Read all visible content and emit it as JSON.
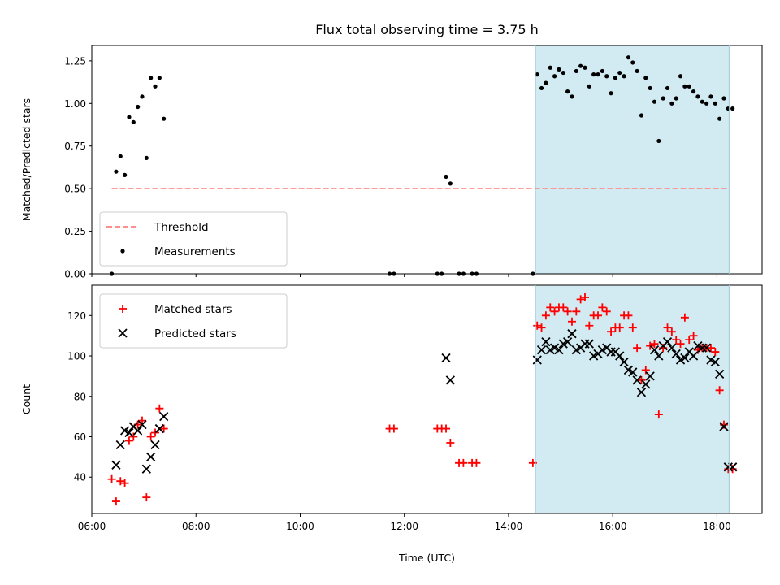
{
  "chart_data": [
    {
      "type": "scatter",
      "title": "Flux total observing time = 3.75 h",
      "xlabel": "",
      "ylabel": "Matched/Predicted stars",
      "xlim": [
        "06:00",
        "18:52"
      ],
      "ylim": [
        0,
        1.34
      ],
      "yticks": [
        0.0,
        0.25,
        0.5,
        0.75,
        1.0,
        1.25
      ],
      "ytick_labels": [
        "0.00",
        "0.25",
        "0.50",
        "0.75",
        "1.00",
        "1.25"
      ],
      "grid": false,
      "shaded_region": {
        "x_start": "14:31",
        "x_end": "18:14",
        "color": "#add8e6"
      },
      "legend": {
        "placement": "lower-left",
        "entries": [
          "Threshold",
          "Measurements"
        ]
      },
      "series": [
        {
          "name": "Threshold",
          "style": "dashed-line",
          "color": "#ff7f7f",
          "x": [
            "06:23",
            "18:14"
          ],
          "y": [
            0.5,
            0.5
          ]
        },
        {
          "name": "Measurements",
          "style": "dots",
          "color": "#000000",
          "x": [
            "06:23",
            "06:28",
            "06:33",
            "06:38",
            "06:43",
            "06:48",
            "06:53",
            "06:58",
            "07:03",
            "07:08",
            "07:13",
            "07:18",
            "07:23",
            "11:43",
            "11:48",
            "12:38",
            "12:43",
            "12:48",
            "12:53",
            "13:03",
            "13:08",
            "13:18",
            "13:23",
            "14:28",
            "14:33",
            "14:38",
            "14:43",
            "14:48",
            "14:53",
            "14:58",
            "15:03",
            "15:08",
            "15:13",
            "15:18",
            "15:23",
            "15:28",
            "15:33",
            "15:38",
            "15:43",
            "15:48",
            "15:53",
            "15:58",
            "16:03",
            "16:08",
            "16:13",
            "16:18",
            "16:23",
            "16:28",
            "16:33",
            "16:38",
            "16:43",
            "16:48",
            "16:53",
            "16:58",
            "17:03",
            "17:08",
            "17:13",
            "17:18",
            "17:23",
            "17:28",
            "17:33",
            "17:38",
            "17:43",
            "17:48",
            "17:53",
            "17:58",
            "18:03",
            "18:08",
            "18:13",
            "18:18"
          ],
          "y": [
            0.0,
            0.6,
            0.69,
            0.58,
            0.92,
            0.89,
            0.98,
            1.04,
            0.68,
            1.15,
            1.1,
            1.15,
            0.91,
            0.0,
            0.0,
            0.0,
            0.0,
            0.57,
            0.53,
            0.0,
            0.0,
            0.0,
            0.0,
            0.0,
            1.17,
            1.09,
            1.12,
            1.21,
            1.16,
            1.2,
            1.18,
            1.07,
            1.04,
            1.19,
            1.22,
            1.21,
            1.1,
            1.17,
            1.17,
            1.19,
            1.16,
            1.06,
            1.15,
            1.18,
            1.16,
            1.27,
            1.24,
            1.19,
            0.93,
            1.15,
            1.09,
            1.01,
            0.78,
            1.03,
            1.09,
            1.0,
            1.03,
            1.16,
            1.1,
            1.1,
            1.07,
            1.04,
            1.01,
            1.0,
            1.04,
            1.0,
            0.91,
            1.03,
            0.97,
            0.97
          ]
        }
      ]
    },
    {
      "type": "scatter",
      "title": "",
      "xlabel": "Time (UTC)",
      "ylabel": "Count",
      "xlim": [
        "06:00",
        "18:52"
      ],
      "ylim": [
        22,
        135
      ],
      "yticks": [
        40,
        60,
        80,
        100,
        120
      ],
      "ytick_labels": [
        "40",
        "60",
        "80",
        "100",
        "120"
      ],
      "xticks": [
        "06:00",
        "08:00",
        "10:00",
        "12:00",
        "14:00",
        "16:00",
        "18:00"
      ],
      "grid": false,
      "shaded_region": {
        "x_start": "14:31",
        "x_end": "18:14",
        "color": "#add8e6"
      },
      "legend": {
        "placement": "upper-left",
        "entries": [
          "Matched stars",
          "Predicted stars"
        ]
      },
      "series": [
        {
          "name": "Matched stars",
          "marker": "+",
          "color": "#ff0000",
          "x": [
            "06:23",
            "06:28",
            "06:33",
            "06:38",
            "06:43",
            "06:48",
            "06:53",
            "06:58",
            "07:03",
            "07:08",
            "07:13",
            "07:18",
            "07:23",
            "11:43",
            "11:48",
            "12:38",
            "12:43",
            "12:48",
            "12:53",
            "13:03",
            "13:08",
            "13:18",
            "13:23",
            "14:28",
            "14:33",
            "14:38",
            "14:43",
            "14:48",
            "14:53",
            "14:58",
            "15:03",
            "15:08",
            "15:13",
            "15:18",
            "15:23",
            "15:28",
            "15:33",
            "15:38",
            "15:43",
            "15:48",
            "15:53",
            "15:58",
            "16:03",
            "16:08",
            "16:13",
            "16:18",
            "16:23",
            "16:28",
            "16:33",
            "16:38",
            "16:43",
            "16:48",
            "16:53",
            "16:58",
            "17:03",
            "17:08",
            "17:13",
            "17:18",
            "17:23",
            "17:28",
            "17:33",
            "17:38",
            "17:43",
            "17:48",
            "17:53",
            "17:58",
            "18:03",
            "18:08",
            "18:13",
            "18:18"
          ],
          "y": [
            39,
            28,
            38,
            37,
            58,
            60,
            66,
            68,
            30,
            60,
            62,
            74,
            64,
            64,
            64,
            64,
            64,
            64,
            57,
            47,
            47,
            47,
            47,
            47,
            115,
            114,
            120,
            124,
            122,
            124,
            124,
            122,
            117,
            122,
            128,
            129,
            115,
            120,
            120,
            124,
            122,
            112,
            114,
            114,
            120,
            120,
            114,
            104,
            88,
            93,
            105,
            106,
            71,
            104,
            114,
            112,
            108,
            106,
            119,
            108,
            110,
            103,
            104,
            104,
            104,
            102,
            83,
            66,
            44,
            44
          ]
        },
        {
          "name": "Predicted stars",
          "marker": "x",
          "color": "#000000",
          "x": [
            "06:28",
            "06:33",
            "06:38",
            "06:43",
            "06:48",
            "06:53",
            "06:58",
            "07:03",
            "07:08",
            "07:13",
            "07:18",
            "07:23",
            "12:48",
            "12:53",
            "14:33",
            "14:38",
            "14:43",
            "14:48",
            "14:53",
            "14:58",
            "15:03",
            "15:08",
            "15:13",
            "15:18",
            "15:23",
            "15:28",
            "15:33",
            "15:38",
            "15:43",
            "15:48",
            "15:53",
            "15:58",
            "16:03",
            "16:08",
            "16:13",
            "16:18",
            "16:23",
            "16:28",
            "16:33",
            "16:38",
            "16:43",
            "16:48",
            "16:53",
            "16:58",
            "17:03",
            "17:08",
            "17:13",
            "17:18",
            "17:23",
            "17:28",
            "17:33",
            "17:38",
            "17:43",
            "17:48",
            "17:53",
            "17:58",
            "18:03",
            "18:08",
            "18:13",
            "18:18"
          ],
          "y": [
            46,
            56,
            63,
            62,
            65,
            63,
            66,
            44,
            50,
            56,
            64,
            70,
            99,
            88,
            98,
            103,
            107,
            103,
            104,
            103,
            106,
            107,
            111,
            103,
            104,
            106,
            106,
            100,
            101,
            103,
            104,
            102,
            102,
            100,
            97,
            93,
            92,
            88,
            82,
            86,
            90,
            103,
            100,
            105,
            107,
            104,
            101,
            98,
            99,
            102,
            100,
            105,
            104,
            104,
            98,
            97,
            91,
            65,
            45,
            45
          ]
        }
      ]
    }
  ]
}
